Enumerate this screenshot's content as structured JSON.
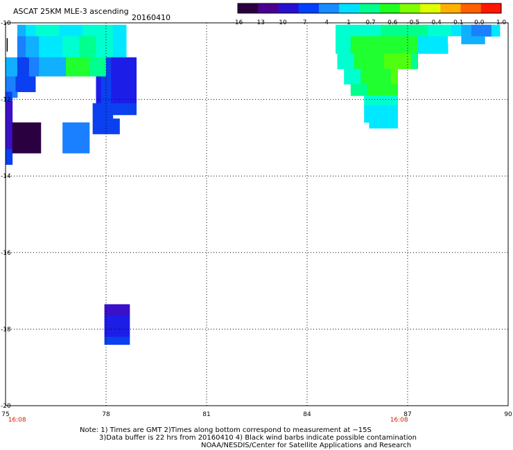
{
  "header": {
    "title": "ASCAT 25KM MLE-3 ascending",
    "date": "20160410"
  },
  "colorbar": {
    "labels": [
      "-16",
      "-13",
      "-10",
      "-7",
      "-4",
      "-1",
      "-0.7",
      "-0.6",
      "-0.5",
      "-0.4",
      "-0.1",
      "0.0",
      "1.0"
    ],
    "colors": [
      "#2b0040",
      "#4b0090",
      "#2810d0",
      "#0040ff",
      "#1a8cff",
      "#00e0ff",
      "#00ff90",
      "#20ff20",
      "#80ff00",
      "#e0ff00",
      "#ffb000",
      "#ff6000",
      "#ff1800"
    ]
  },
  "axes": {
    "x_ticks": [
      "75",
      "78",
      "81",
      "84",
      "87",
      "90"
    ],
    "y_ticks": [
      "-10",
      "-12",
      "-14",
      "-16",
      "-18",
      "-20"
    ],
    "time_labels": [
      {
        "text": "16:08",
        "lon": 75.2
      },
      {
        "text": "16:08",
        "lon": 86.6
      }
    ],
    "time_color": "#cc2200"
  },
  "colors": {
    "c_dark": "#2a0040",
    "c_indigo": "#3a10c8",
    "c_deepblue": "#1d1de8",
    "c_blue": "#0a40f0",
    "c_azure": "#1a80ff",
    "c_sky": "#10b0ff",
    "c_cyan": "#00e8ff",
    "c_aqua": "#00ffd0",
    "c_mint": "#00ff8c",
    "c_green": "#20ff30",
    "c_lime": "#50ff10"
  },
  "map_data": {
    "lon_range": [
      75,
      90
    ],
    "lat_range": [
      -20,
      -10
    ],
    "cells": [
      {
        "lon0": 75.35,
        "lat0": -10.05,
        "lon1": 75.6,
        "lat1": -10.35,
        "color": "c_sky"
      },
      {
        "lon0": 75.6,
        "lat0": -10.05,
        "lon1": 75.9,
        "lat1": -10.35,
        "color": "c_cyan"
      },
      {
        "lon0": 75.9,
        "lat0": -10.05,
        "lon1": 76.6,
        "lat1": -10.35,
        "color": "c_aqua"
      },
      {
        "lon0": 76.6,
        "lat0": -10.05,
        "lon1": 77.3,
        "lat1": -10.35,
        "color": "c_cyan"
      },
      {
        "lon0": 77.3,
        "lat0": -10.05,
        "lon1": 78.2,
        "lat1": -10.35,
        "color": "c_aqua"
      },
      {
        "lon0": 78.2,
        "lat0": -10.05,
        "lon1": 78.6,
        "lat1": -10.35,
        "color": "c_cyan"
      },
      {
        "lon0": 75.35,
        "lat0": -10.35,
        "lon1": 75.6,
        "lat1": -10.9,
        "color": "c_azure"
      },
      {
        "lon0": 75.6,
        "lat0": -10.35,
        "lon1": 76.0,
        "lat1": -10.9,
        "color": "c_sky"
      },
      {
        "lon0": 76.0,
        "lat0": -10.35,
        "lon1": 76.7,
        "lat1": -10.9,
        "color": "c_cyan"
      },
      {
        "lon0": 76.7,
        "lat0": -10.35,
        "lon1": 77.2,
        "lat1": -10.9,
        "color": "c_aqua"
      },
      {
        "lon0": 77.2,
        "lat0": -10.35,
        "lon1": 77.7,
        "lat1": -10.9,
        "color": "c_mint"
      },
      {
        "lon0": 77.7,
        "lat0": -10.35,
        "lon1": 78.2,
        "lat1": -10.9,
        "color": "c_aqua"
      },
      {
        "lon0": 78.2,
        "lat0": -10.35,
        "lon1": 78.6,
        "lat1": -10.9,
        "color": "c_cyan"
      },
      {
        "lon0": 75.0,
        "lat0": -10.9,
        "lon1": 75.35,
        "lat1": -11.4,
        "color": "c_sky"
      },
      {
        "lon0": 75.35,
        "lat0": -10.9,
        "lon1": 75.7,
        "lat1": -11.4,
        "color": "c_blue"
      },
      {
        "lon0": 75.7,
        "lat0": -10.9,
        "lon1": 76.0,
        "lat1": -11.4,
        "color": "c_azure"
      },
      {
        "lon0": 76.0,
        "lat0": -10.9,
        "lon1": 76.8,
        "lat1": -11.4,
        "color": "c_sky"
      },
      {
        "lon0": 76.8,
        "lat0": -10.9,
        "lon1": 77.5,
        "lat1": -11.4,
        "color": "c_green"
      },
      {
        "lon0": 77.5,
        "lat0": -10.9,
        "lon1": 78.0,
        "lat1": -11.4,
        "color": "c_mint"
      },
      {
        "lon0": 78.0,
        "lat0": -10.9,
        "lon1": 78.15,
        "lat1": -11.4,
        "color": "c_blue"
      },
      {
        "lon0": 78.15,
        "lat0": -10.9,
        "lon1": 78.9,
        "lat1": -11.4,
        "color": "c_deepblue"
      },
      {
        "lon0": 75.0,
        "lat0": -11.4,
        "lon1": 75.3,
        "lat1": -11.8,
        "color": "c_azure"
      },
      {
        "lon0": 75.3,
        "lat0": -11.4,
        "lon1": 75.9,
        "lat1": -11.8,
        "color": "c_blue"
      },
      {
        "lon0": 75.9,
        "lat0": -11.4,
        "lon1": 77.7,
        "lat1": -11.8,
        "color": "c_white"
      },
      {
        "lon0": 77.7,
        "lat0": -11.4,
        "lon1": 77.85,
        "lat1": -12.1,
        "color": "c_deepblue"
      },
      {
        "lon0": 77.85,
        "lat0": -11.4,
        "lon1": 78.15,
        "lat1": -12.1,
        "color": "c_blue"
      },
      {
        "lon0": 78.15,
        "lat0": -11.4,
        "lon1": 78.9,
        "lat1": -12.1,
        "color": "c_deepblue"
      },
      {
        "lon0": 75.0,
        "lat0": -11.8,
        "lon1": 75.2,
        "lat1": -12.05,
        "color": "c_blue"
      },
      {
        "lon0": 75.2,
        "lat0": -11.8,
        "lon1": 75.35,
        "lat1": -11.95,
        "color": "c_azure"
      },
      {
        "lon0": 77.6,
        "lat0": -12.1,
        "lon1": 78.2,
        "lat1": -12.5,
        "color": "c_blue"
      },
      {
        "lon0": 78.2,
        "lat0": -12.1,
        "lon1": 78.9,
        "lat1": -12.4,
        "color": "c_blue"
      },
      {
        "lon0": 77.6,
        "lat0": -12.5,
        "lon1": 78.4,
        "lat1": -12.9,
        "color": "c_blue"
      },
      {
        "lon0": 75.0,
        "lat0": -12.05,
        "lon1": 75.2,
        "lat1": -12.6,
        "color": "c_indigo"
      },
      {
        "lon0": 75.0,
        "lat0": -12.6,
        "lon1": 75.2,
        "lat1": -13.3,
        "color": "c_indigo"
      },
      {
        "lon0": 75.0,
        "lat0": -13.3,
        "lon1": 75.2,
        "lat1": -13.7,
        "color": "c_blue"
      },
      {
        "lon0": 75.2,
        "lat0": -12.6,
        "lon1": 76.05,
        "lat1": -13.4,
        "color": "c_dark"
      },
      {
        "lon0": 76.7,
        "lat0": -12.6,
        "lon1": 77.5,
        "lat1": -13.4,
        "color": "c_azure"
      },
      {
        "lon0": 77.95,
        "lat0": -17.35,
        "lon1": 78.7,
        "lat1": -17.65,
        "color": "c_indigo"
      },
      {
        "lon0": 77.95,
        "lat0": -17.65,
        "lon1": 78.7,
        "lat1": -18.2,
        "color": "c_deepblue"
      },
      {
        "lon0": 77.95,
        "lat0": -18.2,
        "lon1": 78.7,
        "lat1": -18.4,
        "color": "c_blue"
      },
      {
        "lon0": 84.85,
        "lat0": -10.05,
        "lon1": 86.2,
        "lat1": -10.35,
        "color": "c_aqua"
      },
      {
        "lon0": 86.2,
        "lat0": -10.05,
        "lon1": 87.6,
        "lat1": -10.35,
        "color": "c_mint"
      },
      {
        "lon0": 87.6,
        "lat0": -10.05,
        "lon1": 88.3,
        "lat1": -10.35,
        "color": "c_aqua"
      },
      {
        "lon0": 88.3,
        "lat0": -10.05,
        "lon1": 88.6,
        "lat1": -10.35,
        "color": "c_cyan"
      },
      {
        "lon0": 88.6,
        "lat0": -10.05,
        "lon1": 88.9,
        "lat1": -10.35,
        "color": "c_sky"
      },
      {
        "lon0": 88.9,
        "lat0": -10.05,
        "lon1": 89.5,
        "lat1": -10.35,
        "color": "c_azure"
      },
      {
        "lon0": 89.5,
        "lat0": -10.05,
        "lon1": 89.75,
        "lat1": -10.35,
        "color": "c_cyan"
      },
      {
        "lon0": 84.85,
        "lat0": -10.35,
        "lon1": 85.3,
        "lat1": -10.8,
        "color": "c_aqua"
      },
      {
        "lon0": 85.3,
        "lat0": -10.35,
        "lon1": 87.3,
        "lat1": -10.8,
        "color": "c_green"
      },
      {
        "lon0": 87.3,
        "lat0": -10.35,
        "lon1": 88.2,
        "lat1": -10.8,
        "color": "c_cyan"
      },
      {
        "lon0": 88.2,
        "lat0": -10.35,
        "lon1": 88.6,
        "lat1": -10.55,
        "color": "c_white"
      },
      {
        "lon0": 88.6,
        "lat0": -10.35,
        "lon1": 89.3,
        "lat1": -10.55,
        "color": "c_sky"
      },
      {
        "lon0": 84.9,
        "lat0": -10.8,
        "lon1": 85.4,
        "lat1": -11.2,
        "color": "c_aqua"
      },
      {
        "lon0": 85.4,
        "lat0": -10.8,
        "lon1": 86.3,
        "lat1": -11.2,
        "color": "c_green"
      },
      {
        "lon0": 86.3,
        "lat0": -10.8,
        "lon1": 87.1,
        "lat1": -11.2,
        "color": "c_lime"
      },
      {
        "lon0": 87.1,
        "lat0": -10.8,
        "lon1": 87.3,
        "lat1": -11.2,
        "color": "c_mint"
      },
      {
        "lon0": 85.1,
        "lat0": -11.2,
        "lon1": 85.6,
        "lat1": -11.6,
        "color": "c_aqua"
      },
      {
        "lon0": 85.6,
        "lat0": -11.2,
        "lon1": 86.5,
        "lat1": -11.6,
        "color": "c_green"
      },
      {
        "lon0": 86.5,
        "lat0": -11.2,
        "lon1": 86.7,
        "lat1": -11.6,
        "color": "c_lime"
      },
      {
        "lon0": 85.3,
        "lat0": -11.6,
        "lon1": 85.8,
        "lat1": -11.9,
        "color": "c_mint"
      },
      {
        "lon0": 85.8,
        "lat0": -11.6,
        "lon1": 86.7,
        "lat1": -11.9,
        "color": "c_green"
      },
      {
        "lon0": 85.7,
        "lat0": -11.9,
        "lon1": 86.7,
        "lat1": -12.15,
        "color": "c_aqua"
      },
      {
        "lon0": 85.7,
        "lat0": -12.15,
        "lon1": 86.7,
        "lat1": -12.6,
        "color": "c_cyan"
      },
      {
        "lon0": 85.85,
        "lat0": -12.6,
        "lon1": 86.7,
        "lat1": -12.75,
        "color": "c_cyan"
      }
    ],
    "black_lines": [
      {
        "lon0": 75.05,
        "lat0": -10.4,
        "lon1": 75.05,
        "lat1": -10.75
      }
    ]
  },
  "notes": {
    "line1": "Note: 1) Times are GMT 2)Times along bottom correspond to measurement at −15S",
    "line2": "3)Data buffer is 22 hrs from 20160410 4) Black wind barbs indicate possible contamination",
    "line3": "NOAA/NESDIS/Center for Satellite Applications and Research"
  }
}
